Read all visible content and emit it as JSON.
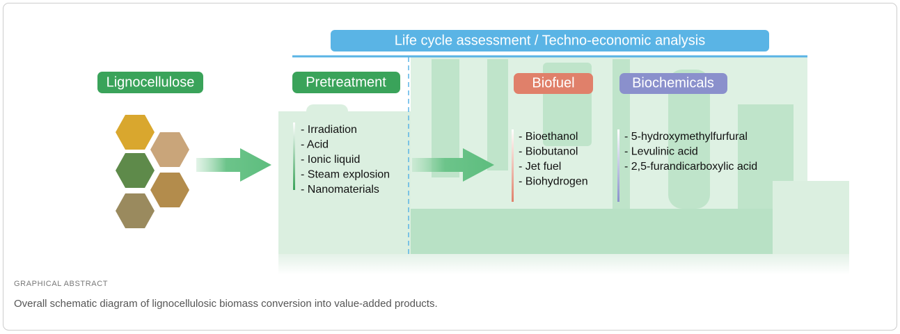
{
  "banner": "Life cycle assessment / Techno-economic analysis",
  "source": {
    "title": "Lignocellulose"
  },
  "pretreatment": {
    "title": "Pretreatment",
    "items": [
      "- Irradiation",
      "- Acid",
      "- Ionic liquid",
      "- Steam explosion",
      "- Nanomaterials"
    ]
  },
  "biofuel": {
    "title": "Biofuel",
    "items": [
      "- Bioethanol",
      "- Biobutanol",
      "- Jet fuel",
      "- Biohydrogen"
    ]
  },
  "biochemicals": {
    "title": "Biochemicals",
    "items": [
      "- 5-hydroxymethylfurfural",
      "- Levulinic acid",
      "- 2,5-furandicarboxylic acid"
    ]
  },
  "caption": {
    "label": "GRAPHICAL ABSTRACT",
    "text": "Overall schematic diagram of lignocellulosic biomass conversion into value-added products."
  }
}
